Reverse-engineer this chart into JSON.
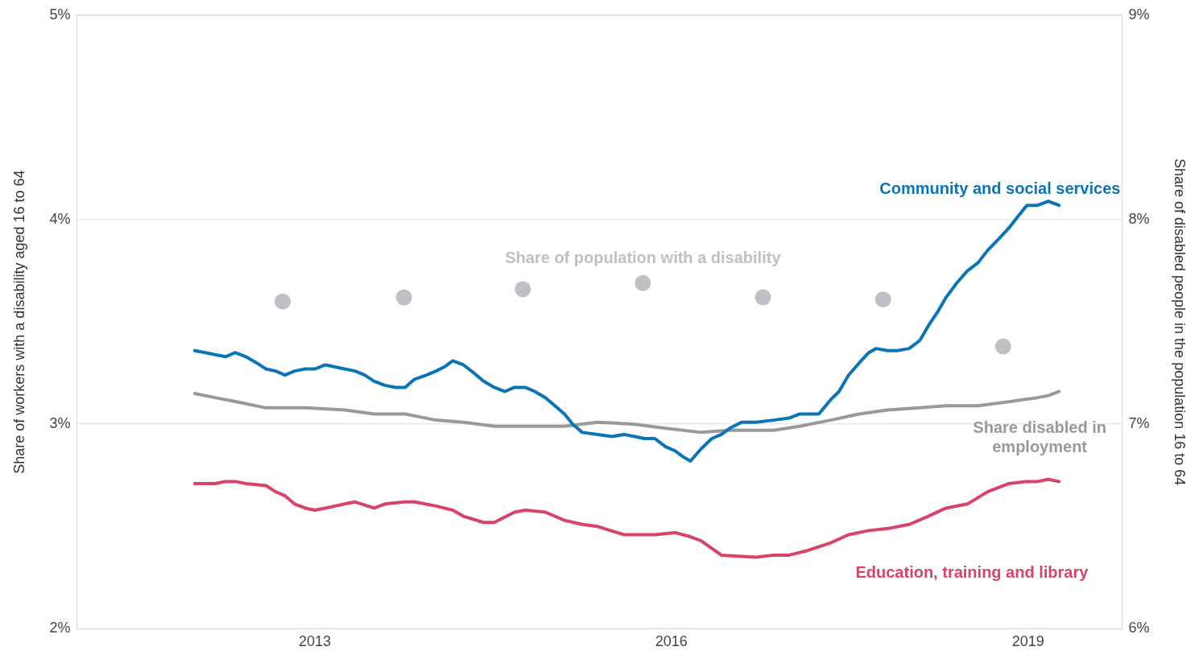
{
  "chart_data": {
    "type": "line",
    "ylabel": "Share of workers with a disability aged 16 to 64",
    "y2label": "Share of disabled people in the population 16 to 64",
    "xlim": [
      2011.0,
      2019.79
    ],
    "xticks": [
      2013,
      2016,
      2019
    ],
    "ylim": [
      2,
      5
    ],
    "yticks": [
      {
        "value": 2,
        "label": "2%"
      },
      {
        "value": 3,
        "label": "3%"
      },
      {
        "value": 4,
        "label": "4%"
      },
      {
        "value": 5,
        "label": "5%"
      }
    ],
    "y2lim": [
      6,
      9
    ],
    "y2ticks": [
      {
        "value": 6,
        "label": "6%"
      },
      {
        "value": 7,
        "label": "7%"
      },
      {
        "value": 8,
        "label": "8%"
      },
      {
        "value": 9,
        "label": "9%"
      }
    ],
    "grid": "y",
    "legend": false,
    "series": [
      {
        "name": "Community and social services",
        "color": "#0a74b8",
        "x": [
          2011.99,
          2012.08,
          2012.16,
          2012.25,
          2012.33,
          2012.42,
          2012.51,
          2012.59,
          2012.67,
          2012.75,
          2012.83,
          2012.92,
          2013.0,
          2013.09,
          2013.17,
          2013.25,
          2013.34,
          2013.42,
          2013.5,
          2013.59,
          2013.68,
          2013.76,
          2013.84,
          2013.94,
          2014.02,
          2014.09,
          2014.16,
          2014.25,
          2014.34,
          2014.42,
          2014.51,
          2014.6,
          2014.68,
          2014.77,
          2014.85,
          2014.94,
          2015.02,
          2015.1,
          2015.17,
          2015.25,
          2015.38,
          2015.5,
          2015.6,
          2015.69,
          2015.77,
          2015.86,
          2015.95,
          2016.03,
          2016.1,
          2016.16,
          2016.25,
          2016.34,
          2016.42,
          2016.49,
          2016.59,
          2016.71,
          2016.86,
          2016.99,
          2017.08,
          2017.24,
          2017.34,
          2017.41,
          2017.49,
          2017.58,
          2017.66,
          2017.72,
          2017.82,
          2017.9,
          2018.0,
          2018.09,
          2018.16,
          2018.24,
          2018.31,
          2018.4,
          2018.49,
          2018.58,
          2018.66,
          2018.76,
          2018.84,
          2018.92,
          2018.99,
          2019.08,
          2019.17,
          2019.26
        ],
        "values": [
          3.36,
          3.35,
          3.34,
          3.33,
          3.35,
          3.33,
          3.3,
          3.27,
          3.26,
          3.24,
          3.26,
          3.27,
          3.27,
          3.29,
          3.28,
          3.27,
          3.26,
          3.24,
          3.21,
          3.19,
          3.18,
          3.18,
          3.22,
          3.24,
          3.26,
          3.28,
          3.31,
          3.29,
          3.25,
          3.21,
          3.18,
          3.16,
          3.18,
          3.18,
          3.16,
          3.13,
          3.09,
          3.05,
          3.0,
          2.96,
          2.95,
          2.94,
          2.95,
          2.94,
          2.93,
          2.93,
          2.89,
          2.87,
          2.84,
          2.82,
          2.88,
          2.93,
          2.95,
          2.98,
          3.01,
          3.01,
          3.02,
          3.03,
          3.05,
          3.05,
          3.12,
          3.16,
          3.24,
          3.3,
          3.35,
          3.37,
          3.36,
          3.36,
          3.37,
          3.41,
          3.48,
          3.55,
          3.62,
          3.69,
          3.75,
          3.79,
          3.85,
          3.91,
          3.96,
          4.02,
          4.07,
          4.07,
          4.09,
          4.07
        ]
      },
      {
        "name": "Education, training and library",
        "color": "#d9436a",
        "x": [
          2011.99,
          2012.08,
          2012.16,
          2012.25,
          2012.33,
          2012.42,
          2012.59,
          2012.67,
          2012.75,
          2012.83,
          2012.92,
          2013.0,
          2013.09,
          2013.25,
          2013.34,
          2013.5,
          2013.59,
          2013.76,
          2013.84,
          2014.02,
          2014.16,
          2014.25,
          2014.42,
          2014.51,
          2014.68,
          2014.77,
          2014.94,
          2015.1,
          2015.25,
          2015.38,
          2015.6,
          2015.77,
          2015.86,
          2016.03,
          2016.16,
          2016.25,
          2016.42,
          2016.71,
          2016.86,
          2016.99,
          2017.13,
          2017.34,
          2017.49,
          2017.66,
          2017.82,
          2018.0,
          2018.16,
          2018.31,
          2018.49,
          2018.66,
          2018.84,
          2018.99,
          2019.08,
          2019.17,
          2019.26
        ],
        "values": [
          2.71,
          2.71,
          2.71,
          2.72,
          2.72,
          2.71,
          2.7,
          2.67,
          2.65,
          2.61,
          2.59,
          2.58,
          2.59,
          2.61,
          2.62,
          2.59,
          2.61,
          2.62,
          2.62,
          2.6,
          2.58,
          2.55,
          2.52,
          2.52,
          2.57,
          2.58,
          2.57,
          2.53,
          2.51,
          2.5,
          2.46,
          2.46,
          2.46,
          2.47,
          2.45,
          2.43,
          2.36,
          2.35,
          2.36,
          2.36,
          2.38,
          2.42,
          2.46,
          2.48,
          2.49,
          2.51,
          2.55,
          2.59,
          2.61,
          2.67,
          2.71,
          2.72,
          2.72,
          2.73,
          2.72
        ]
      },
      {
        "name": "Share disabled in employment",
        "color": "#999999",
        "x": [
          2011.99,
          2012.16,
          2012.34,
          2012.59,
          2012.92,
          2013.25,
          2013.5,
          2013.76,
          2014.02,
          2014.25,
          2014.51,
          2014.77,
          2015.1,
          2015.38,
          2015.69,
          2015.95,
          2016.25,
          2016.49,
          2016.86,
          2017.08,
          2017.34,
          2017.58,
          2017.82,
          2018.09,
          2018.31,
          2018.58,
          2018.84,
          2019.08,
          2019.17,
          2019.26
        ],
        "values": [
          3.15,
          3.13,
          3.11,
          3.08,
          3.08,
          3.07,
          3.05,
          3.05,
          3.02,
          3.01,
          2.99,
          2.99,
          2.99,
          3.01,
          3.0,
          2.98,
          2.96,
          2.97,
          2.97,
          2.99,
          3.02,
          3.05,
          3.07,
          3.08,
          3.09,
          3.09,
          3.11,
          3.13,
          3.14,
          3.16
        ]
      },
      {
        "name": "Share of population with a disability",
        "color": "#c0bfc5",
        "type": "scatter",
        "axis": "y2",
        "marker": "circle",
        "x": [
          2012.73,
          2013.75,
          2014.75,
          2015.76,
          2016.77,
          2017.78,
          2018.79
        ],
        "values": [
          7.6,
          7.62,
          7.66,
          7.69,
          7.62,
          7.61,
          7.38
        ]
      }
    ]
  }
}
